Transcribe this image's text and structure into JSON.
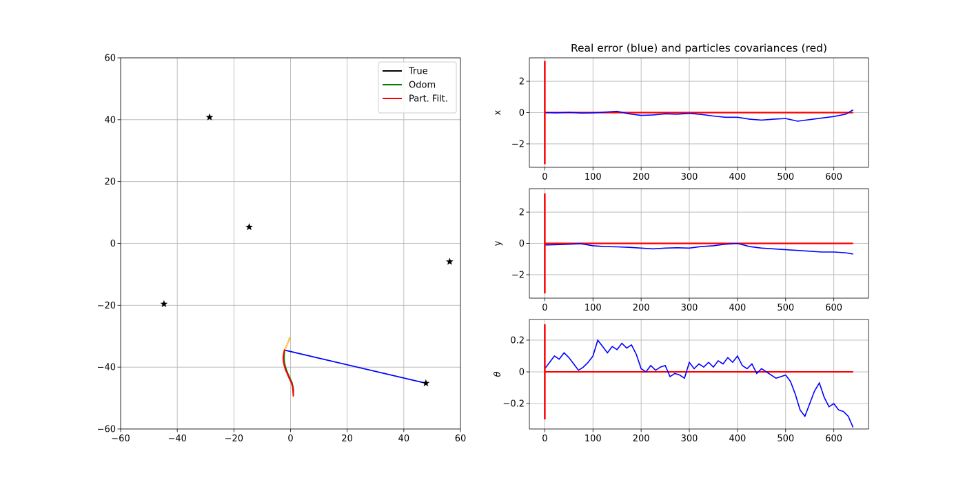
{
  "chart_data": [
    {
      "type": "line",
      "xlim": [
        -60,
        60
      ],
      "ylim": [
        -60,
        60
      ],
      "x_ticks": [
        -60,
        -40,
        -20,
        0,
        20,
        40,
        60
      ],
      "y_ticks": [
        -60,
        -40,
        -20,
        0,
        20,
        40,
        60
      ],
      "grid": true,
      "legend_position": "top-right",
      "legend": [
        "True",
        "Odom",
        "Part. Filt."
      ],
      "colors": {
        "true": "#000000",
        "odom": "#008000",
        "filter": "#ff0000",
        "sensor_line": "#0000ff",
        "particles": "#ffa500",
        "landmarks": "#000000"
      },
      "landmarks": [
        {
          "x": -28.6,
          "y": 40.8
        },
        {
          "x": -14.6,
          "y": 5.3
        },
        {
          "x": 56.2,
          "y": -5.9
        },
        {
          "x": -44.7,
          "y": -19.6
        },
        {
          "x": 47.8,
          "y": -45.2
        }
      ],
      "series": [
        {
          "name": "True",
          "x": [
            -2.1,
            -2.3,
            -2.4,
            -2.3,
            -2.0,
            -1.6,
            -1.1,
            -0.6,
            -0.1,
            0.4,
            0.8,
            1.0,
            1.0
          ],
          "y": [
            -34.5,
            -35.8,
            -37.0,
            -38.3,
            -39.6,
            -40.8,
            -42.0,
            -43.0,
            -44.0,
            -45.0,
            -46.2,
            -47.5,
            -48.8
          ]
        },
        {
          "name": "Odom",
          "x": [
            -2.1,
            -2.2,
            -2.3,
            -2.2,
            -1.9,
            -1.5,
            -1.0,
            -0.5,
            0.0,
            0.5,
            0.8,
            0.9,
            1.0
          ],
          "y": [
            -34.5,
            -35.8,
            -37.0,
            -38.3,
            -39.6,
            -40.8,
            -42.0,
            -43.0,
            -44.0,
            -45.0,
            -46.2,
            -47.5,
            -49.0
          ]
        },
        {
          "name": "Part. Filt.",
          "x": [
            -2.1,
            -2.4,
            -2.6,
            -2.5,
            -2.2,
            -1.8,
            -1.2,
            -0.7,
            -0.2,
            0.3,
            0.7,
            0.9,
            1.0
          ],
          "y": [
            -34.3,
            -35.6,
            -36.9,
            -38.2,
            -39.5,
            -40.8,
            -42.0,
            -43.1,
            -44.1,
            -45.1,
            -46.3,
            -47.8,
            -49.5
          ]
        }
      ],
      "sensor_line": {
        "x": [
          -2.1,
          47.8
        ],
        "y": [
          -34.5,
          -45.2
        ]
      },
      "particles": {
        "x": [
          -2.1,
          -1.6,
          -1.1,
          -0.6,
          -0.3
        ],
        "y": [
          -34.5,
          -33.5,
          -32.5,
          -31.4,
          -30.4
        ]
      }
    },
    {
      "type": "line",
      "title": "Real error (blue) and particles covariances (red)",
      "ylabel": "x",
      "xlim": [
        -32,
        672
      ],
      "ylim": [
        -3.5,
        3.5
      ],
      "x_ticks": [
        0,
        100,
        200,
        300,
        400,
        500,
        600
      ],
      "y_ticks": [
        -2,
        0,
        2
      ],
      "grid": true,
      "colors": {
        "error": "#0000ff",
        "covariance": "#ff0000"
      },
      "covariance_spike": {
        "x": 0,
        "y_range": [
          -3.3,
          3.3
        ]
      },
      "covariance_value": 0.0,
      "error": {
        "x": [
          0,
          25,
          50,
          75,
          100,
          125,
          150,
          175,
          200,
          225,
          250,
          275,
          300,
          325,
          350,
          375,
          400,
          425,
          450,
          475,
          500,
          525,
          550,
          575,
          600,
          625,
          640
        ],
        "y": [
          0.0,
          -0.02,
          0.02,
          -0.03,
          -0.02,
          0.03,
          0.08,
          -0.08,
          -0.18,
          -0.15,
          -0.08,
          -0.1,
          -0.05,
          -0.12,
          -0.22,
          -0.3,
          -0.3,
          -0.42,
          -0.48,
          -0.42,
          -0.38,
          -0.55,
          -0.45,
          -0.35,
          -0.25,
          -0.1,
          0.18
        ]
      }
    },
    {
      "type": "line",
      "ylabel": "y",
      "xlim": [
        -32,
        672
      ],
      "ylim": [
        -3.5,
        3.5
      ],
      "x_ticks": [
        0,
        100,
        200,
        300,
        400,
        500,
        600
      ],
      "y_ticks": [
        -2,
        0,
        2
      ],
      "grid": true,
      "colors": {
        "error": "#0000ff",
        "covariance": "#ff0000"
      },
      "covariance_spike": {
        "x": 0,
        "y_range": [
          -3.2,
          3.2
        ]
      },
      "covariance_value": 0.0,
      "error": {
        "x": [
          0,
          25,
          50,
          75,
          100,
          125,
          150,
          175,
          200,
          225,
          250,
          275,
          300,
          325,
          350,
          375,
          400,
          425,
          450,
          475,
          500,
          525,
          550,
          575,
          600,
          625,
          640
        ],
        "y": [
          -0.1,
          -0.08,
          -0.05,
          -0.02,
          -0.15,
          -0.2,
          -0.22,
          -0.25,
          -0.3,
          -0.35,
          -0.3,
          -0.28,
          -0.3,
          -0.2,
          -0.15,
          -0.05,
          0.0,
          -0.2,
          -0.3,
          -0.35,
          -0.4,
          -0.45,
          -0.5,
          -0.55,
          -0.55,
          -0.6,
          -0.68
        ]
      }
    },
    {
      "type": "line",
      "ylabel": "θ",
      "xlim": [
        -32,
        672
      ],
      "ylim": [
        -0.36,
        0.33
      ],
      "x_ticks": [
        0,
        100,
        200,
        300,
        400,
        500,
        600
      ],
      "y_ticks": [
        -0.2,
        0.0,
        0.2
      ],
      "grid": true,
      "colors": {
        "error": "#0000ff",
        "covariance": "#ff0000"
      },
      "covariance_spike": {
        "x": 0,
        "y_range": [
          -0.3,
          0.3
        ]
      },
      "covariance_value": 0.0,
      "error": {
        "x": [
          0,
          10,
          20,
          30,
          40,
          50,
          60,
          70,
          80,
          90,
          100,
          110,
          120,
          130,
          140,
          150,
          160,
          170,
          180,
          190,
          200,
          210,
          220,
          230,
          240,
          250,
          260,
          270,
          280,
          290,
          300,
          310,
          320,
          330,
          340,
          350,
          360,
          370,
          380,
          390,
          400,
          410,
          420,
          430,
          440,
          450,
          460,
          470,
          480,
          490,
          500,
          510,
          520,
          530,
          540,
          550,
          560,
          570,
          580,
          590,
          600,
          610,
          620,
          630,
          640
        ],
        "y": [
          0.02,
          0.06,
          0.1,
          0.08,
          0.12,
          0.09,
          0.05,
          0.01,
          0.03,
          0.06,
          0.1,
          0.2,
          0.16,
          0.12,
          0.16,
          0.14,
          0.18,
          0.15,
          0.17,
          0.11,
          0.02,
          0.0,
          0.04,
          0.01,
          0.03,
          0.04,
          -0.03,
          -0.01,
          -0.02,
          -0.04,
          0.06,
          0.02,
          0.05,
          0.03,
          0.06,
          0.03,
          0.07,
          0.05,
          0.09,
          0.06,
          0.1,
          0.04,
          0.02,
          0.05,
          -0.01,
          0.02,
          0.0,
          -0.02,
          -0.04,
          -0.03,
          -0.02,
          -0.06,
          -0.14,
          -0.24,
          -0.28,
          -0.2,
          -0.12,
          -0.07,
          -0.16,
          -0.22,
          -0.2,
          -0.24,
          -0.25,
          -0.28,
          -0.35
        ]
      }
    }
  ]
}
